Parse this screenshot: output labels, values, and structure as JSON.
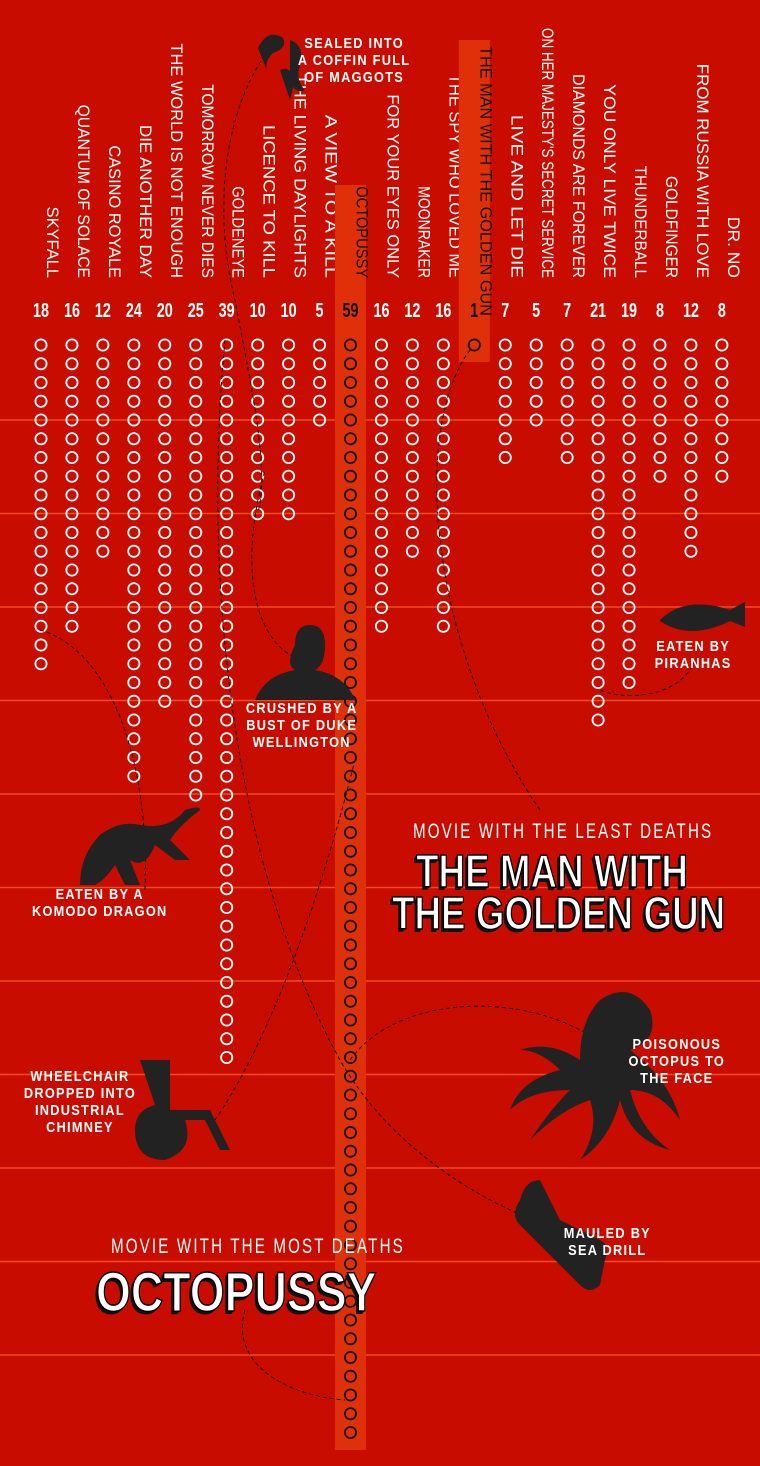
{
  "colors": {
    "background": "#c80d00",
    "highlight": "#e0300a",
    "gridline": "#f04a20",
    "circle": "#ffffff",
    "highlight_circle": "#111111",
    "silhouette": "#222222"
  },
  "chart_data": {
    "type": "dot-column",
    "categories": [
      "SKYFALL",
      "QUANTUM OF SOLACE",
      "CASINO ROYALE",
      "DIE ANOTHER DAY",
      "THE WORLD IS NOT ENOUGH",
      "TOMORROW NEVER DIES",
      "GOLDENEYE",
      "LICENCE TO KILL",
      "THE LIVING DAYLIGHTS",
      "A VIEW TO A KILL",
      "OCTOPUSSY",
      "FOR YOUR EYES ONLY",
      "MOONRAKER",
      "THE SPY WHO LOVED ME",
      "THE MAN WITH THE GOLDEN GUN",
      "LIVE AND LET DIE",
      "ON HER MAJESTY'S SECRET SERVICE",
      "DIAMONDS ARE FOREVER",
      "YOU ONLY LIVE TWICE",
      "THUNDERBALL",
      "GOLDFINGER",
      "FROM RUSSIA WITH LOVE",
      "DR. NO"
    ],
    "values": [
      18,
      16,
      12,
      24,
      20,
      25,
      39,
      10,
      10,
      5,
      59,
      16,
      12,
      16,
      1,
      7,
      5,
      7,
      21,
      19,
      8,
      12,
      8
    ],
    "highlighted": [
      "OCTOPUSSY",
      "THE MAN WITH THE GOLDEN GUN"
    ]
  },
  "annotations": [
    {
      "text": "SEALED INTO\nA COFFIN FULL\nOF MAGGOTS",
      "icon": "maggots-icon"
    },
    {
      "text": "CRUSHED BY A\nBUST OF DUKE\nWELLINGTON",
      "icon": "bust-icon"
    },
    {
      "text": "EATEN BY\nPIRANHAS",
      "icon": "piranha-icon"
    },
    {
      "text": "EATEN BY A\nKOMODO DRAGON",
      "icon": "komodo-dragon-icon"
    },
    {
      "text": "POISONOUS\nOCTOPUS TO\nTHE FACE",
      "icon": "octopus-icon"
    },
    {
      "text": "WHEELCHAIR\nDROPPED INTO\nINDUSTRIAL\nCHIMNEY",
      "icon": "wheelchair-icon"
    },
    {
      "text": "MAULED BY\nSEA DRILL",
      "icon": "sea-drill-icon"
    }
  ],
  "least": {
    "label": "MOVIE WITH THE LEAST DEATHS",
    "title_line1": "THE MAN WITH",
    "title_line2": "THE GOLDEN GUN"
  },
  "most": {
    "label": "MOVIE WITH THE MOST DEATHS",
    "title": "OCTOPUSSY"
  }
}
